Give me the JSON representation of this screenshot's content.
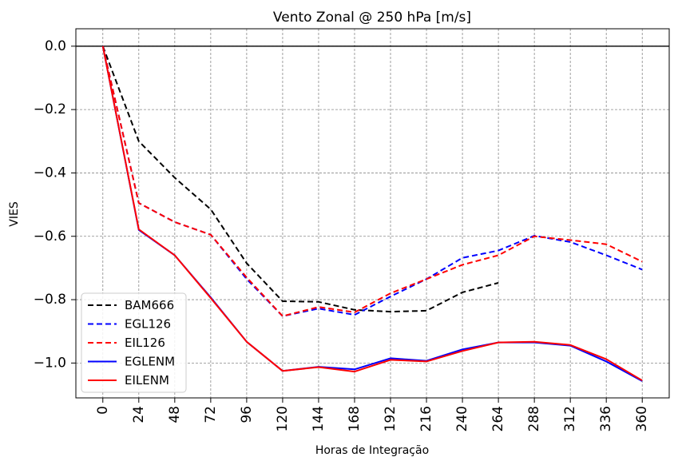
{
  "chart_data": {
    "type": "line",
    "title": "Vento Zonal @ 250 hPa [m/s]",
    "xlabel": "Horas de Integração",
    "ylabel": "VIES",
    "x": [
      0,
      24,
      48,
      72,
      96,
      120,
      144,
      168,
      192,
      216,
      240,
      264,
      288,
      312,
      336,
      360
    ],
    "xticks": [
      "0",
      "24",
      "48",
      "72",
      "96",
      "120",
      "144",
      "168",
      "192",
      "216",
      "240",
      "264",
      "288",
      "312",
      "336",
      "360"
    ],
    "yticks": [
      "0.0",
      "−0.2",
      "−0.4",
      "−0.6",
      "−0.8",
      "−1.0"
    ],
    "ytick_values": [
      0.0,
      -0.2,
      -0.4,
      -0.6,
      -0.8,
      -1.0
    ],
    "xlim": [
      -18,
      378
    ],
    "ylim": [
      -1.11,
      0.055
    ],
    "grid": true,
    "zero_line": true,
    "legend_position": "lower-left",
    "series": [
      {
        "name": "BAM666",
        "color": "#000000",
        "dash": "dashed",
        "values": [
          0.0,
          -0.3,
          -0.415,
          -0.515,
          -0.685,
          -0.805,
          -0.807,
          -0.832,
          -0.838,
          -0.835,
          -0.777,
          -0.747,
          null,
          null,
          null,
          null
        ]
      },
      {
        "name": "EGL126",
        "color": "#0000ff",
        "dash": "dashed",
        "values": [
          0.0,
          -0.495,
          -0.555,
          -0.595,
          -0.735,
          -0.852,
          -0.828,
          -0.848,
          -0.79,
          -0.735,
          -0.668,
          -0.645,
          -0.598,
          -0.618,
          -0.66,
          -0.705
        ]
      },
      {
        "name": "EIL126",
        "color": "#ff0000",
        "dash": "dashed",
        "values": [
          0.0,
          -0.495,
          -0.555,
          -0.595,
          -0.73,
          -0.852,
          -0.823,
          -0.84,
          -0.78,
          -0.735,
          -0.69,
          -0.66,
          -0.6,
          -0.612,
          -0.625,
          -0.68
        ]
      },
      {
        "name": "EGLENM",
        "color": "#0000ff",
        "dash": "solid",
        "values": [
          0.0,
          -0.58,
          -0.66,
          -0.793,
          -0.933,
          -1.025,
          -1.012,
          -1.02,
          -0.985,
          -0.993,
          -0.957,
          -0.935,
          -0.935,
          -0.945,
          -0.995,
          -1.057
        ]
      },
      {
        "name": "EILENM",
        "color": "#ff0000",
        "dash": "solid",
        "values": [
          0.0,
          -0.578,
          -0.66,
          -0.795,
          -0.933,
          -1.025,
          -1.013,
          -1.027,
          -0.99,
          -0.995,
          -0.962,
          -0.935,
          -0.933,
          -0.943,
          -0.988,
          -1.055
        ]
      }
    ]
  }
}
